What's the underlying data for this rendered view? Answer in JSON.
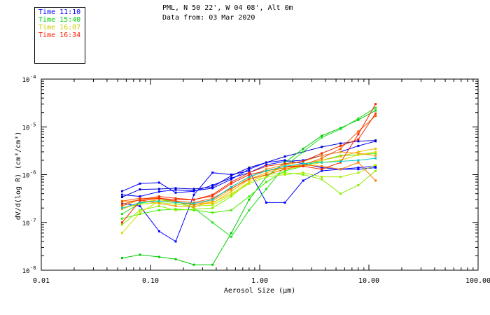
{
  "header": {
    "station": "PML, N 50 22', W 04 08', Alt 0m",
    "date_line": "Data from: 03 Mar 2020"
  },
  "legend": [
    {
      "label": "Time 11:10",
      "color": "#0000ff"
    },
    {
      "label": "Time 15:40",
      "color": "#00cc00"
    },
    {
      "label": "Time 16:07",
      "color": "#cccc00"
    },
    {
      "label": "Time 16:34",
      "color": "#ff2000"
    }
  ],
  "chart_data": {
    "type": "line",
    "title": "",
    "xlabel": "Aerosol Size (µm)",
    "ylabel": "dV/d(log R) (cm³/cm³)",
    "xscale": "log",
    "yscale": "log",
    "xlim": [
      0.01,
      100
    ],
    "ylim": [
      1e-08,
      0.0001
    ],
    "x_ticks": [
      {
        "value": 0.01,
        "label": "0.01"
      },
      {
        "value": 0.1,
        "label": "0.10"
      },
      {
        "value": 1,
        "label": "1.00"
      },
      {
        "value": 10,
        "label": "10.00"
      },
      {
        "value": 100,
        "label": "100.00"
      }
    ],
    "y_ticks": [
      {
        "value": 1e-08,
        "mantissa": "10",
        "exp": "-8"
      },
      {
        "value": 1e-07,
        "mantissa": "10",
        "exp": "-7"
      },
      {
        "value": 1e-06,
        "mantissa": "10",
        "exp": "-6"
      },
      {
        "value": 1e-05,
        "mantissa": "10",
        "exp": "-5"
      },
      {
        "value": 0.0001,
        "mantissa": "10",
        "exp": "-4"
      }
    ],
    "x": [
      0.055,
      0.08,
      0.12,
      0.17,
      0.25,
      0.37,
      0.55,
      0.8,
      1.15,
      1.7,
      2.5,
      3.7,
      5.5,
      8.0,
      11.5
    ],
    "series": [
      {
        "name": "blue-1",
        "color": "#0000ff",
        "values": [
          3.8e-07,
          3.5e-07,
          4.4e-07,
          4.8e-07,
          4.6e-07,
          5.2e-07,
          8e-07,
          1.3e-06,
          1.8e-06,
          2e-06,
          1.7e-06,
          1.4e-06,
          1.3e-06,
          1.3e-06,
          1.4e-06
        ]
      },
      {
        "name": "blue-2",
        "color": "#0000ff",
        "values": [
          4.5e-07,
          6.5e-07,
          6.8e-07,
          4.2e-07,
          4.5e-07,
          6e-07,
          8.5e-07,
          1.1e-06,
          1.6e-06,
          1.9e-06,
          2e-06,
          2.5e-06,
          3e-06,
          4e-06,
          5e-06
        ]
      },
      {
        "name": "blue-3",
        "color": "#0000ff",
        "values": [
          2.5e-07,
          2.2e-07,
          6.5e-08,
          4e-08,
          3.8e-07,
          1.1e-06,
          1e-06,
          1.2e-06,
          2.6e-07,
          2.6e-07,
          7.5e-07,
          1.2e-06,
          1.3e-06,
          1.4e-06,
          1.5e-06
        ]
      },
      {
        "name": "blue-4",
        "color": "#0000cc",
        "values": [
          3.4e-07,
          4.9e-07,
          5e-07,
          5.2e-07,
          5e-07,
          5.5e-07,
          9.5e-07,
          1.4e-06,
          1.8e-06,
          2.4e-06,
          3e-06,
          3.8e-06,
          4.5e-06,
          5e-06,
          5.2e-06
        ]
      },
      {
        "name": "green-1",
        "color": "#00cc00",
        "values": [
          1.8e-08,
          2.1e-08,
          1.9e-08,
          1.7e-08,
          1.3e-08,
          1.3e-08,
          6e-08,
          3e-07,
          9e-07,
          1.8e-06,
          3.5e-06,
          6.5e-06,
          9.5e-06,
          1.4e-05,
          2.2e-05
        ]
      },
      {
        "name": "green-2",
        "color": "#22dd22",
        "values": [
          1.5e-07,
          2.5e-07,
          3e-07,
          2.8e-07,
          2e-07,
          1e-07,
          5e-08,
          1.8e-07,
          5e-07,
          1.5e-06,
          3e-06,
          6e-06,
          9e-06,
          1.5e-05,
          2.5e-05
        ]
      },
      {
        "name": "green-3",
        "color": "#44ee00",
        "values": [
          1.2e-07,
          1.5e-07,
          1.8e-07,
          1.9e-07,
          1.8e-07,
          1.6e-07,
          1.8e-07,
          3.5e-07,
          7e-07,
          1.2e-06,
          1.5e-06,
          2e-06,
          2.5e-06,
          2.6e-06,
          2.8e-06
        ]
      },
      {
        "name": "lime-1",
        "color": "#88ee00",
        "values": [
          9e-08,
          1.8e-07,
          2.2e-07,
          1.8e-07,
          1.9e-07,
          2e-07,
          3.5e-07,
          7e-07,
          1e-06,
          1.1e-06,
          1e-06,
          8e-07,
          4e-07,
          6e-07,
          1.2e-06
        ]
      },
      {
        "name": "lime-2",
        "color": "#aaee00",
        "values": [
          2e-07,
          2.4e-07,
          2.6e-07,
          2.4e-07,
          2.2e-07,
          2.3e-07,
          3.8e-07,
          6.5e-07,
          9e-07,
          1e-06,
          1.1e-06,
          9e-07,
          9e-07,
          1.1e-06,
          1.6e-06
        ]
      },
      {
        "name": "yellow-1",
        "color": "#dddd00",
        "values": [
          6e-08,
          1.6e-07,
          2.8e-07,
          2.6e-07,
          2.4e-07,
          2.6e-07,
          4e-07,
          7e-07,
          1e-06,
          1.3e-06,
          1.5e-06,
          1.8e-06,
          2e-06,
          2.6e-06,
          3e-06
        ]
      },
      {
        "name": "yellow-2",
        "color": "#eebb00",
        "values": [
          1.9e-07,
          2.6e-07,
          3e-07,
          2.6e-07,
          2.4e-07,
          2.5e-07,
          4.5e-07,
          8e-07,
          1.1e-06,
          1.4e-06,
          1.7e-06,
          2e-06,
          2.4e-06,
          3e-06,
          3.5e-06
        ]
      },
      {
        "name": "orange-1",
        "color": "#ff9900",
        "values": [
          2.7e-07,
          2.9e-07,
          2.5e-07,
          2.2e-07,
          2.1e-07,
          2.8e-07,
          5e-07,
          8.5e-07,
          1.3e-06,
          1.6e-06,
          1.9e-06,
          2.5e-06,
          3e-06,
          2.8e-06,
          2.5e-06
        ]
      },
      {
        "name": "orange-2",
        "color": "#ff7700",
        "values": [
          2.2e-07,
          3e-07,
          3.3e-07,
          2.7e-07,
          2.3e-07,
          3e-07,
          5.5e-07,
          9e-07,
          1.2e-06,
          1.4e-06,
          1.6e-06,
          1.5e-06,
          1.3e-06,
          1.8e-06,
          7.5e-07
        ]
      },
      {
        "name": "orange-3",
        "color": "#ff5500",
        "values": [
          2.8e-07,
          3.2e-07,
          3.2e-07,
          2.8e-07,
          2.6e-07,
          3.2e-07,
          5.2e-07,
          8e-07,
          1e-06,
          1.3e-06,
          1.6e-06,
          2.2e-06,
          3.5e-06,
          8e-06,
          1.7e-05
        ]
      },
      {
        "name": "red-1",
        "color": "#ff2000",
        "values": [
          1e-07,
          2.8e-07,
          3.2e-07,
          3e-07,
          3e-07,
          3.6e-07,
          6.5e-07,
          1e-06,
          1.2e-06,
          1.5e-06,
          1.5e-06,
          1.3e-06,
          1.8e-06,
          7e-06,
          3e-05
        ]
      },
      {
        "name": "red-2",
        "color": "#ee3300",
        "values": [
          2.4e-07,
          3e-07,
          3.5e-07,
          3.2e-07,
          3e-07,
          3.8e-07,
          7e-07,
          1.1e-06,
          1.5e-06,
          1.7e-06,
          1.9e-06,
          2.8e-06,
          4e-06,
          5.5e-06,
          1.9e-05
        ]
      },
      {
        "name": "cyan-1",
        "color": "#00cccc",
        "values": [
          2e-07,
          2.6e-07,
          2.8e-07,
          2.6e-07,
          2.5e-07,
          3e-07,
          5.5e-07,
          9e-07,
          1.2e-06,
          1.5e-06,
          1.7e-06,
          1.8e-06,
          1.9e-06,
          2e-06,
          2.2e-06
        ]
      }
    ]
  }
}
